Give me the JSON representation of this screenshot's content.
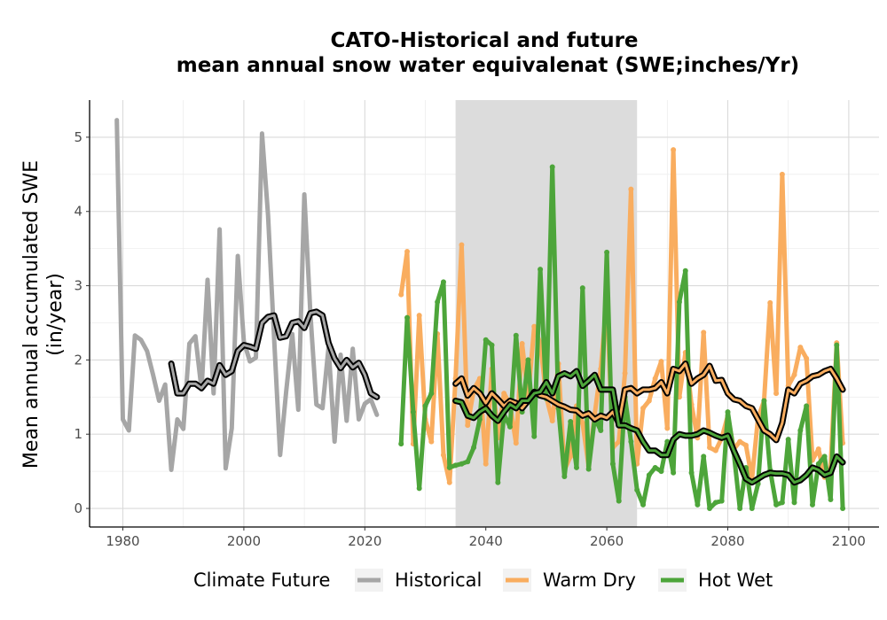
{
  "chart_data": {
    "type": "line",
    "title": "CATO-Historical and future",
    "subtitle": "mean annual snow water equivalenat (SWE;inches/Yr)",
    "xlabel": "",
    "ylabel": "Mean annual accumulated SWE",
    "ylabel2": "(in/year)",
    "xlim": [
      1974.5,
      2105
    ],
    "ylim": [
      -0.25,
      5.5
    ],
    "x_ticks": [
      1980,
      2000,
      2020,
      2040,
      2060,
      2080,
      2100
    ],
    "y_ticks": [
      0,
      1,
      2,
      3,
      4,
      5
    ],
    "grid": true,
    "legend_title": "Climate Future",
    "legend_position": "bottom",
    "shaded_period": [
      2035,
      2065
    ],
    "colors": {
      "Historical": "#a6a6a6",
      "Warm Dry": "#f9ad5f",
      "Hot Wet": "#4da53a",
      "outline": "#000000",
      "shade": "#dcdcdc"
    },
    "series": [
      {
        "name": "Historical",
        "x": [
          1979,
          1980,
          1981,
          1982,
          1983,
          1984,
          1985,
          1986,
          1987,
          1988,
          1989,
          1990,
          1991,
          1992,
          1993,
          1994,
          1995,
          1996,
          1997,
          1998,
          1999,
          2000,
          2001,
          2002,
          2003,
          2004,
          2005,
          2006,
          2007,
          2008,
          2009,
          2010,
          2011,
          2012,
          2013,
          2014,
          2015,
          2016,
          2017,
          2018,
          2019,
          2020,
          2021,
          2022
        ],
        "values": [
          5.23,
          1.2,
          1.05,
          2.33,
          2.27,
          2.12,
          1.8,
          1.45,
          1.67,
          0.52,
          1.2,
          1.07,
          2.22,
          2.32,
          1.6,
          3.08,
          1.55,
          3.76,
          0.54,
          1.08,
          3.4,
          2.25,
          1.98,
          2.03,
          5.05,
          3.95,
          2.3,
          0.72,
          1.57,
          2.35,
          1.33,
          4.23,
          2.63,
          1.4,
          1.35,
          2.17,
          0.9,
          2.07,
          1.18,
          2.15,
          1.2,
          1.41,
          1.47,
          1.26
        ]
      },
      {
        "name": "Historical rolling mean",
        "x": [
          1988,
          1989,
          1990,
          1991,
          1992,
          1993,
          1994,
          1995,
          1996,
          1997,
          1998,
          1999,
          2000,
          2001,
          2002,
          2003,
          2004,
          2005,
          2006,
          2007,
          2008,
          2009,
          2010,
          2011,
          2012,
          2013,
          2014,
          2015,
          2016,
          2017,
          2018,
          2019,
          2020,
          2021,
          2022
        ],
        "values": [
          1.95,
          1.55,
          1.55,
          1.68,
          1.68,
          1.62,
          1.72,
          1.68,
          1.93,
          1.8,
          1.85,
          2.12,
          2.2,
          2.18,
          2.15,
          2.5,
          2.58,
          2.6,
          2.3,
          2.32,
          2.5,
          2.52,
          2.43,
          2.63,
          2.65,
          2.6,
          2.23,
          2.02,
          1.89,
          2.0,
          1.9,
          1.96,
          1.8,
          1.55,
          1.5
        ]
      },
      {
        "name": "Warm Dry",
        "x": [
          2026,
          2027,
          2028,
          2029,
          2030,
          2031,
          2032,
          2033,
          2034,
          2035,
          2036,
          2037,
          2038,
          2039,
          2040,
          2041,
          2042,
          2043,
          2044,
          2045,
          2046,
          2047,
          2048,
          2049,
          2050,
          2051,
          2052,
          2053,
          2054,
          2055,
          2056,
          2057,
          2058,
          2059,
          2060,
          2061,
          2062,
          2063,
          2064,
          2065,
          2066,
          2067,
          2068,
          2069,
          2070,
          2071,
          2072,
          2073,
          2074,
          2075,
          2076,
          2077,
          2078,
          2079,
          2080,
          2081,
          2082,
          2083,
          2084,
          2085,
          2086,
          2087,
          2088,
          2089,
          2090,
          2091,
          2092,
          2093,
          2094,
          2095,
          2096,
          2097,
          2098,
          2099
        ],
        "values": [
          2.88,
          3.46,
          0.87,
          2.6,
          1.2,
          0.9,
          2.35,
          0.72,
          0.35,
          1.75,
          3.55,
          1.12,
          1.6,
          1.75,
          0.6,
          1.88,
          0.95,
          1.55,
          1.4,
          0.88,
          2.22,
          1.5,
          2.45,
          2.22,
          1.5,
          1.18,
          1.95,
          0.52,
          0.7,
          1.38,
          1.15,
          0.57,
          1.27,
          1.88,
          2.82,
          0.82,
          0.9,
          1.82,
          4.3,
          0.6,
          1.35,
          1.45,
          1.75,
          1.98,
          1.08,
          4.83,
          1.5,
          2.1,
          1.4,
          0.95,
          2.37,
          0.82,
          0.78,
          0.95,
          1.25,
          0.8,
          0.9,
          0.85,
          0.4,
          1.22,
          1.45,
          2.77,
          1.55,
          4.5,
          1.65,
          1.8,
          2.17,
          2.02,
          0.65,
          0.8,
          0.42,
          0.55,
          2.23,
          0.88
        ]
      },
      {
        "name": "Warm Dry rolling mean",
        "x": [
          2035,
          2036,
          2037,
          2038,
          2039,
          2040,
          2041,
          2042,
          2043,
          2044,
          2045,
          2046,
          2047,
          2048,
          2049,
          2050,
          2051,
          2052,
          2053,
          2054,
          2055,
          2056,
          2057,
          2058,
          2059,
          2060,
          2061,
          2062,
          2063,
          2064,
          2065,
          2066,
          2067,
          2068,
          2069,
          2070,
          2071,
          2072,
          2073,
          2074,
          2075,
          2076,
          2077,
          2078,
          2079,
          2080,
          2081,
          2082,
          2083,
          2084,
          2085,
          2086,
          2087,
          2088,
          2089,
          2090,
          2091,
          2092,
          2093,
          2094,
          2095,
          2096,
          2097,
          2098,
          2099
        ],
        "values": [
          1.68,
          1.75,
          1.52,
          1.62,
          1.55,
          1.42,
          1.55,
          1.47,
          1.38,
          1.45,
          1.42,
          1.35,
          1.45,
          1.57,
          1.52,
          1.5,
          1.45,
          1.4,
          1.37,
          1.33,
          1.32,
          1.25,
          1.28,
          1.2,
          1.25,
          1.22,
          1.3,
          1.15,
          1.6,
          1.62,
          1.55,
          1.6,
          1.6,
          1.62,
          1.7,
          1.55,
          1.88,
          1.85,
          1.95,
          1.68,
          1.75,
          1.8,
          1.92,
          1.72,
          1.73,
          1.55,
          1.47,
          1.45,
          1.38,
          1.35,
          1.2,
          1.05,
          1.0,
          0.92,
          1.15,
          1.6,
          1.55,
          1.68,
          1.72,
          1.78,
          1.8,
          1.85,
          1.88,
          1.75,
          1.6
        ]
      },
      {
        "name": "Hot Wet",
        "x": [
          2026,
          2027,
          2028,
          2029,
          2030,
          2031,
          2032,
          2033,
          2034,
          2035,
          2036,
          2037,
          2038,
          2039,
          2040,
          2041,
          2042,
          2043,
          2044,
          2045,
          2046,
          2047,
          2048,
          2049,
          2050,
          2051,
          2052,
          2053,
          2054,
          2055,
          2056,
          2057,
          2058,
          2059,
          2060,
          2061,
          2062,
          2063,
          2064,
          2065,
          2066,
          2067,
          2068,
          2069,
          2070,
          2071,
          2072,
          2073,
          2074,
          2075,
          2076,
          2077,
          2078,
          2079,
          2080,
          2081,
          2082,
          2083,
          2084,
          2085,
          2086,
          2087,
          2088,
          2089,
          2090,
          2091,
          2092,
          2093,
          2094,
          2095,
          2096,
          2097,
          2098,
          2099
        ],
        "values": [
          0.87,
          2.57,
          1.3,
          0.27,
          1.38,
          1.55,
          2.78,
          3.05,
          0.55,
          0.58,
          0.6,
          0.63,
          0.82,
          1.2,
          2.27,
          2.2,
          0.35,
          1.27,
          1.1,
          2.33,
          1.3,
          2.0,
          0.97,
          3.22,
          1.48,
          4.6,
          1.35,
          0.43,
          1.17,
          0.55,
          2.97,
          0.53,
          1.22,
          1.05,
          3.45,
          0.6,
          0.1,
          1.5,
          0.9,
          0.25,
          0.05,
          0.45,
          0.55,
          0.5,
          0.9,
          0.48,
          2.78,
          3.2,
          0.48,
          0.05,
          0.7,
          0.0,
          0.08,
          0.1,
          1.3,
          0.75,
          0.0,
          0.55,
          0.0,
          0.33,
          1.45,
          0.52,
          0.05,
          0.08,
          0.93,
          0.08,
          1.05,
          1.38,
          0.05,
          0.6,
          0.7,
          0.12,
          2.2,
          0.0
        ]
      },
      {
        "name": "Hot Wet rolling mean",
        "x": [
          2035,
          2036,
          2037,
          2038,
          2039,
          2040,
          2041,
          2042,
          2043,
          2044,
          2045,
          2046,
          2047,
          2048,
          2049,
          2050,
          2051,
          2052,
          2053,
          2054,
          2055,
          2056,
          2057,
          2058,
          2059,
          2060,
          2061,
          2062,
          2063,
          2064,
          2065,
          2066,
          2067,
          2068,
          2069,
          2070,
          2071,
          2072,
          2073,
          2074,
          2075,
          2076,
          2077,
          2078,
          2079,
          2080,
          2081,
          2082,
          2083,
          2084,
          2085,
          2086,
          2087,
          2088,
          2089,
          2090,
          2091,
          2092,
          2093,
          2094,
          2095,
          2096,
          2097,
          2098,
          2099
        ],
        "values": [
          1.45,
          1.43,
          1.25,
          1.22,
          1.3,
          1.35,
          1.25,
          1.18,
          1.3,
          1.4,
          1.35,
          1.45,
          1.45,
          1.55,
          1.57,
          1.7,
          1.55,
          1.78,
          1.82,
          1.78,
          1.85,
          1.65,
          1.72,
          1.8,
          1.6,
          1.6,
          1.6,
          1.12,
          1.12,
          1.08,
          1.05,
          0.9,
          0.78,
          0.78,
          0.72,
          0.72,
          0.93,
          1.0,
          0.98,
          0.98,
          1.0,
          1.05,
          1.02,
          0.98,
          0.95,
          0.98,
          0.78,
          0.6,
          0.4,
          0.35,
          0.4,
          0.45,
          0.48,
          0.47,
          0.47,
          0.45,
          0.35,
          0.38,
          0.45,
          0.55,
          0.52,
          0.45,
          0.48,
          0.7,
          0.62
        ]
      }
    ]
  }
}
